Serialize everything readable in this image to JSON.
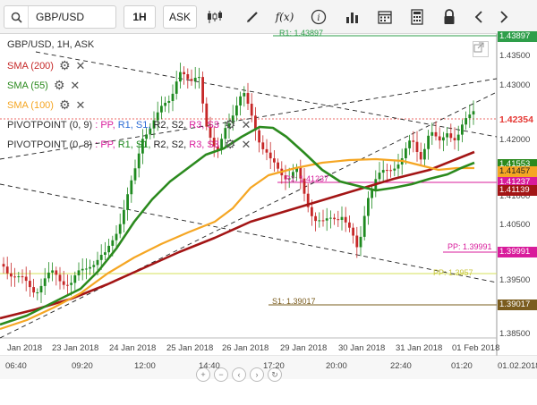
{
  "toolbar": {
    "symbol": "GBP/USD",
    "timeframe": "1H",
    "price_side": "ASK",
    "fx_label": "f(x)"
  },
  "legend": {
    "title": "GBP/USD, 1H, ASK",
    "sma200": "SMA (200)",
    "sma55": "SMA (55)",
    "sma100": "SMA (100)",
    "pivot1": {
      "name": "PIVOTPOINT (0, 9)",
      "sep": ":",
      "pp": "PP,",
      "r1": "R1,",
      "s1": "S1,",
      "r2": "R2,",
      "s2": "S2,",
      "r3": "R3,",
      "s3": "S3"
    },
    "pivot2": {
      "name": "PIVOTPOINT (0, 8)",
      "sep": ":",
      "pp": "PP,",
      "r1": "R1,",
      "s1": "S1,",
      "r2": "R2,",
      "s2": "S2,",
      "r3": "R3,",
      "s3": "S3"
    }
  },
  "price_axis": [
    "1.43500",
    "1.43000",
    "1.42000",
    "1.41000",
    "1.40500",
    "1.39500",
    "1.38500"
  ],
  "price_labels": {
    "top": "1.43897",
    "current": "1.42354",
    "sma55": "1.41553",
    "sma100": "1.41457",
    "pivot_r1": "1.41237",
    "sma200": "1.41139",
    "pp": "1.39991",
    "s1": "1.39017"
  },
  "inline_labels": {
    "top": "R1: 1.43897",
    "r1_mid": "R1: 1.41237",
    "pp": "PP: 1.39991",
    "s1_pivot2": "PP: 1.3957",
    "s1": "S1: 1.39017"
  },
  "date_axis": [
    "Jan 2018",
    "23 Jan 2018",
    "24 Jan 2018",
    "25 Jan 2018",
    "26 Jan 2018",
    "29 Jan 2018",
    "30 Jan 2018",
    "31 Jan 2018",
    "01 Feb 2018"
  ],
  "time_axis": [
    "06:40",
    "09:20",
    "12:00",
    "14:40",
    "17:20",
    "20:00",
    "22:40",
    "01:20",
    "01.02.2018"
  ],
  "colors": {
    "sma200": "#a31515",
    "sma55": "#2b8a1e",
    "sma100": "#f5a623",
    "pivot": "#d81b9b",
    "up_candle": "#1f8a20",
    "down_candle": "#c62828",
    "current": "#e53935"
  },
  "icons": {
    "search": "search-icon",
    "candles": "candlestick-icon",
    "draw": "pencil-icon",
    "info": "info-icon",
    "bars": "bar-chart-icon",
    "calendar": "calendar-icon",
    "calculator": "calculator-icon",
    "lock": "lock-icon",
    "prev": "chevron-left-icon",
    "next": "chevron-right-icon"
  }
}
